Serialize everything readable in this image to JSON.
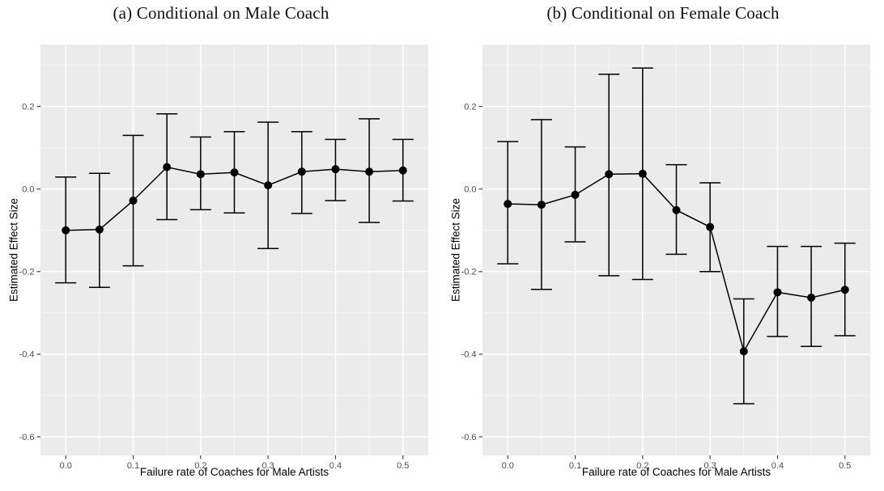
{
  "figure": {
    "background": "#ffffff"
  },
  "style": {
    "panel_bg": "#EBEBEB",
    "grid_major": "#FFFFFF",
    "grid_minor": "#F7F7F7",
    "series_color": "#000000",
    "tick_label_color": "#4D4D4D",
    "tick_mark_color": "#333333",
    "axis_title_color": "#000000",
    "title_color": "#111111"
  },
  "chart_data": [
    {
      "type": "scatter",
      "subtype": "point-with-error-bars",
      "title": "(a) Conditional on Male Coach",
      "xlabel": "Failure rate of Coaches for Male Artists",
      "ylabel": "Estimated Effect Size",
      "x": [
        0.0,
        0.05,
        0.1,
        0.15,
        0.2,
        0.25,
        0.3,
        0.35,
        0.4,
        0.45,
        0.5
      ],
      "estimate": [
        -0.1,
        -0.098,
        -0.028,
        0.053,
        0.036,
        0.04,
        0.009,
        0.042,
        0.048,
        0.042,
        0.045
      ],
      "ci_low": [
        -0.227,
        -0.238,
        -0.186,
        -0.074,
        -0.05,
        -0.058,
        -0.144,
        -0.059,
        -0.028,
        -0.081,
        -0.029
      ],
      "ci_high": [
        0.029,
        0.038,
        0.13,
        0.182,
        0.126,
        0.139,
        0.162,
        0.139,
        0.12,
        0.17,
        0.12
      ],
      "x_tick_values": [
        0.0,
        0.1,
        0.2,
        0.3,
        0.4,
        0.5
      ],
      "x_tick_labels": [
        "0.0",
        "0.1",
        "0.2",
        "0.3",
        "0.4",
        "0.5"
      ],
      "x_minor_ticks": [
        0.05,
        0.15,
        0.25,
        0.35,
        0.45
      ],
      "y_tick_values": [
        0.2,
        0.0,
        -0.2,
        -0.4,
        -0.6
      ],
      "y_tick_labels": [
        "0.2",
        "0.0",
        "-0.2",
        "-0.4",
        "-0.6"
      ],
      "y_minor_ticks": [
        0.3,
        0.1,
        -0.1,
        -0.3,
        -0.5
      ],
      "xlim": [
        -0.0375,
        0.5375
      ],
      "ylim": [
        -0.645,
        0.35
      ],
      "grid": true,
      "legend": "none"
    },
    {
      "type": "scatter",
      "subtype": "point-with-error-bars",
      "title": "(b) Conditional on Female Coach",
      "xlabel": "Failure rate of Coaches for Male Artists",
      "ylabel": "Estimated Effect Size",
      "x": [
        0.0,
        0.05,
        0.1,
        0.15,
        0.2,
        0.25,
        0.3,
        0.35,
        0.4,
        0.45,
        0.5
      ],
      "estimate": [
        -0.036,
        -0.038,
        -0.014,
        0.036,
        0.037,
        -0.051,
        -0.092,
        -0.393,
        -0.25,
        -0.263,
        -0.244
      ],
      "ci_low": [
        -0.181,
        -0.243,
        -0.128,
        -0.21,
        -0.219,
        -0.158,
        -0.2,
        -0.52,
        -0.357,
        -0.381,
        -0.355
      ],
      "ci_high": [
        0.115,
        0.168,
        0.102,
        0.278,
        0.293,
        0.059,
        0.015,
        -0.266,
        -0.139,
        -0.139,
        -0.131
      ],
      "x_tick_values": [
        0.0,
        0.1,
        0.2,
        0.3,
        0.4,
        0.5
      ],
      "x_tick_labels": [
        "0.0",
        "0.1",
        "0.2",
        "0.3",
        "0.4",
        "0.5"
      ],
      "x_minor_ticks": [
        0.05,
        0.15,
        0.25,
        0.35,
        0.45
      ],
      "y_tick_values": [
        0.2,
        0.0,
        -0.2,
        -0.4,
        -0.6
      ],
      "y_tick_labels": [
        "0.2",
        "0.0",
        "-0.2",
        "-0.4",
        "-0.6"
      ],
      "y_minor_ticks": [
        0.3,
        0.1,
        -0.1,
        -0.3,
        -0.5
      ],
      "xlim": [
        -0.0375,
        0.5375
      ],
      "ylim": [
        -0.645,
        0.35
      ],
      "grid": true,
      "legend": "none"
    }
  ]
}
